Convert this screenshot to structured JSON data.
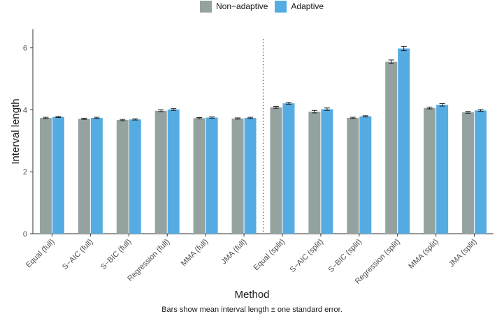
{
  "chart_data": {
    "type": "bar",
    "title": "",
    "xlabel": "Method",
    "ylabel": "Interval length",
    "caption": "Bars show mean interval length ± one standard error.",
    "ylim": [
      0,
      6.6
    ],
    "yticks": [
      0,
      2,
      4,
      6
    ],
    "categories": [
      "Equal (full)",
      "S−AIC (full)",
      "S−BIC (full)",
      "Regression (full)",
      "MMA (full)",
      "JMA (full)",
      "Equal (split)",
      "S−AIC (split)",
      "S−BIC (split)",
      "Regression (split)",
      "MMA (split)",
      "JMA (split)"
    ],
    "series": [
      {
        "name": "Non−adaptive",
        "color": "#95A3A0",
        "values": [
          3.74,
          3.71,
          3.67,
          3.97,
          3.73,
          3.72,
          4.08,
          3.94,
          3.74,
          5.55,
          4.06,
          3.92
        ],
        "errors": [
          0.02,
          0.02,
          0.02,
          0.03,
          0.02,
          0.02,
          0.03,
          0.04,
          0.02,
          0.06,
          0.03,
          0.03
        ]
      },
      {
        "name": "Adaptive",
        "color": "#55ACE3",
        "values": [
          3.77,
          3.74,
          3.69,
          4.01,
          3.75,
          3.74,
          4.21,
          4.02,
          3.79,
          5.98,
          4.16,
          3.98
        ],
        "errors": [
          0.02,
          0.02,
          0.02,
          0.03,
          0.02,
          0.02,
          0.03,
          0.04,
          0.02,
          0.07,
          0.04,
          0.03
        ]
      }
    ],
    "divider_after_category": "JMA (full)",
    "legend_position": "top",
    "grid": false
  }
}
